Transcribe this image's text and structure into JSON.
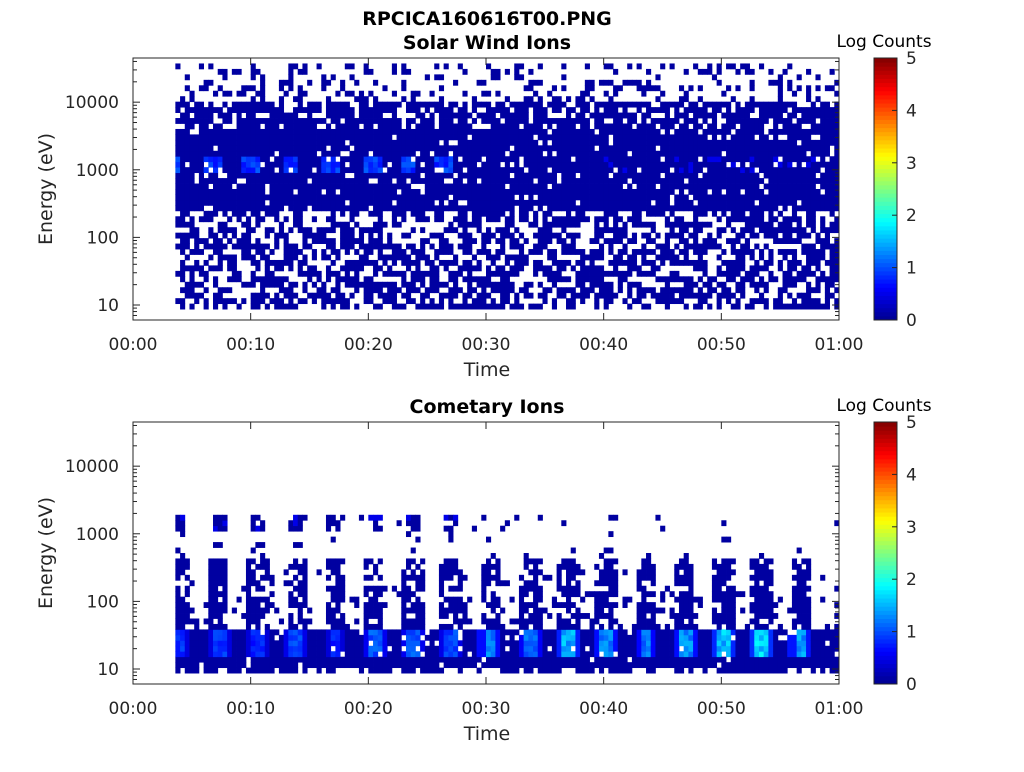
{
  "figure": {
    "title": "RPCICA160616T00.PNG"
  },
  "colors": {
    "colormap": [
      "#00008f",
      "#0000ff",
      "#0080ff",
      "#00ffff",
      "#80ff80",
      "#ffff00",
      "#ff8000",
      "#ff0000",
      "#800000"
    ],
    "axis": "#262626",
    "background": "#ffffff"
  },
  "chart_data": [
    {
      "type": "heatmap",
      "title": "Solar Wind Ions",
      "xlabel": "Time",
      "ylabel": "Energy (eV)",
      "xlim_minutes": [
        0,
        60
      ],
      "x_ticks": [
        "00:00",
        "00:10",
        "00:20",
        "00:30",
        "00:40",
        "00:50",
        "01:00"
      ],
      "y_scale": "log",
      "ylim": [
        6,
        45000
      ],
      "y_ticks": [
        10,
        100,
        1000,
        10000
      ],
      "y_tick_labels": [
        "10",
        "100",
        "1000",
        "10000"
      ],
      "colorbar": {
        "label": "Log Counts",
        "range": [
          0,
          5
        ],
        "ticks": [
          "0",
          "1",
          "2",
          "3",
          "4",
          "5"
        ]
      },
      "description_of_values": {
        "background_level": 0.1,
        "occupied_energy_range_eV": [
          8,
          40000
        ],
        "peak_energy_eV": 1200,
        "peak_log_counts_max": 1.1,
        "peak_times_minutes": [
          3.5,
          6.8,
          10.1,
          13.5,
          16.9,
          20.3,
          23.5,
          26.5
        ]
      }
    },
    {
      "type": "heatmap",
      "title": "Cometary Ions",
      "xlabel": "Time",
      "ylabel": "Energy (eV)",
      "xlim_minutes": [
        0,
        60
      ],
      "x_ticks": [
        "00:00",
        "00:10",
        "00:20",
        "00:30",
        "00:40",
        "00:50",
        "01:00"
      ],
      "y_scale": "log",
      "ylim": [
        6,
        45000
      ],
      "y_ticks": [
        10,
        100,
        1000,
        10000
      ],
      "y_tick_labels": [
        "10",
        "100",
        "1000",
        "10000"
      ],
      "colorbar": {
        "label": "Log Counts",
        "range": [
          0,
          5
        ],
        "ticks": [
          "0",
          "1",
          "2",
          "3",
          "4",
          "5"
        ]
      },
      "description_of_values": {
        "background_level": 0.1,
        "main_band_energy_eV": [
          15,
          40
        ],
        "pulse_period_minutes": 3.3,
        "pulse_times_minutes": [
          4,
          7.3,
          10.6,
          13.9,
          17.2,
          20.5,
          23.8,
          27.1,
          30.4,
          33.7,
          37,
          40.3,
          43.6,
          46.9,
          50.2,
          53.5,
          56.8
        ],
        "pulse_peak_log_counts": [
          1.0,
          1.0,
          0.9,
          1.1,
          0.9,
          1.2,
          1.2,
          1.1,
          1.5,
          1.3,
          1.7,
          1.5,
          1.4,
          1.5,
          1.8,
          1.9,
          1.6
        ],
        "secondary_energy_eV": 1400
      }
    }
  ]
}
